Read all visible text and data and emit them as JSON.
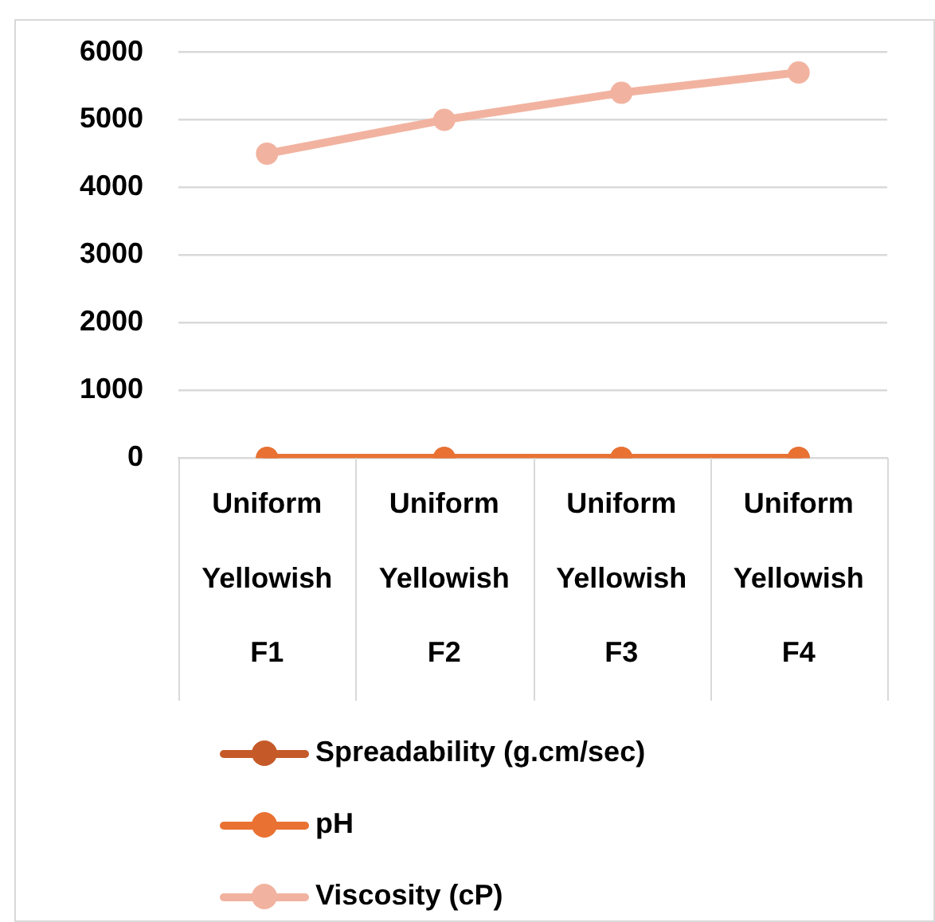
{
  "chart_data": {
    "type": "line",
    "categories": [
      "Uniform\nYellowish\nF1",
      "Uniform\nYellowish\nF2",
      "Uniform\nYellowish\nF3",
      "Uniform\nYellowish\nF4"
    ],
    "series": [
      {
        "name": "Spreadability (g.cm/sec)",
        "color": "#c55a28",
        "values": [
          0,
          0,
          0,
          0
        ]
      },
      {
        "name": "pH",
        "color": "#e97132",
        "values": [
          0,
          0,
          0,
          0
        ]
      },
      {
        "name": "Viscosity (cP)",
        "color": "#f1b3a0",
        "values": [
          4500,
          5000,
          5400,
          5700
        ]
      }
    ],
    "ylim": [
      0,
      6000
    ],
    "yticks": [
      0,
      1000,
      2000,
      3000,
      4000,
      5000,
      6000
    ],
    "grid": "y",
    "legend": "bottom",
    "marker": "circle",
    "line_style": "solid"
  }
}
